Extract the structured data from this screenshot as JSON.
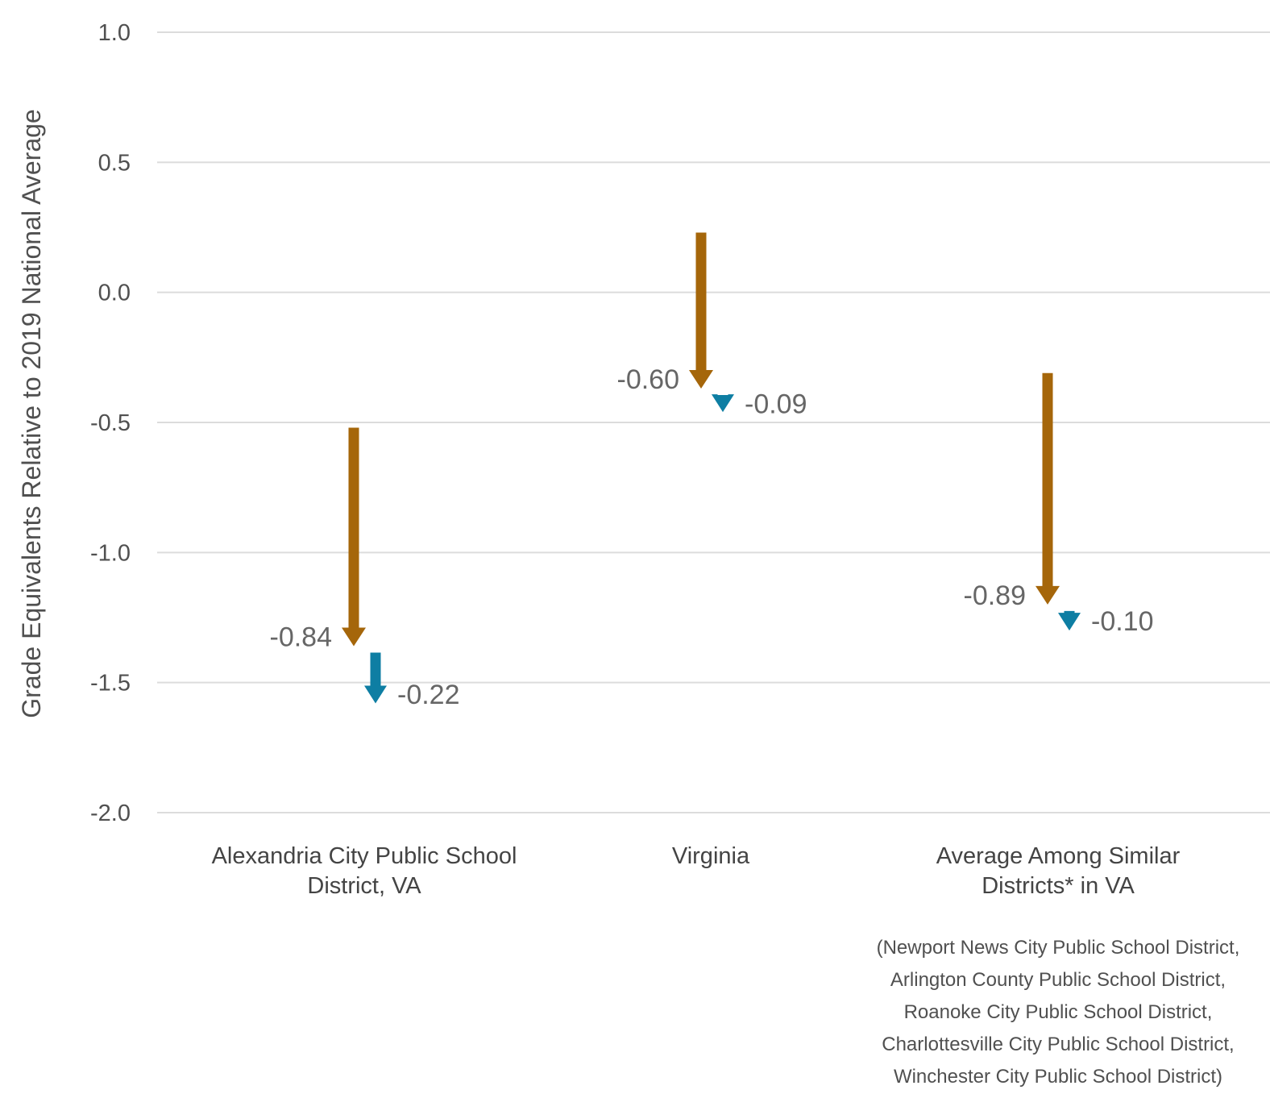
{
  "chart_data": {
    "type": "arrow",
    "ylabel": "Grade Equivalents Relative to 2019 National Average",
    "ylim": [
      -2.0,
      1.0
    ],
    "yticks": [
      {
        "value": 1.0,
        "label": "1.0"
      },
      {
        "value": 0.5,
        "label": "0.5"
      },
      {
        "value": 0.0,
        "label": "0.0"
      },
      {
        "value": -0.5,
        "label": "-0.5"
      },
      {
        "value": -1.0,
        "label": "-1.0"
      },
      {
        "value": -1.5,
        "label": "-1.5"
      },
      {
        "value": -2.0,
        "label": "-2.0"
      }
    ],
    "grid": true,
    "colors": {
      "first_change": "#a5660a",
      "second_change": "#0e7ea3"
    },
    "categories": [
      {
        "label_lines": [
          "Alexandria City Public School",
          "District, VA"
        ],
        "changes": [
          {
            "from": -0.52,
            "to": -1.36,
            "label": "-0.84"
          },
          {
            "from": -1.36,
            "to": -1.58,
            "label": "-0.22"
          }
        ]
      },
      {
        "label_lines": [
          "Virginia"
        ],
        "changes": [
          {
            "from": 0.23,
            "to": -0.37,
            "label": "-0.60"
          },
          {
            "from": -0.37,
            "to": -0.46,
            "label": "-0.09"
          }
        ]
      },
      {
        "label_lines": [
          "Average Among Similar",
          "Districts* in VA"
        ],
        "changes": [
          {
            "from": -0.31,
            "to": -1.2,
            "label": "-0.89"
          },
          {
            "from": -1.2,
            "to": -1.3,
            "label": "-0.10"
          }
        ]
      }
    ],
    "footnote_lines": [
      "(Newport News City Public School District,",
      "Arlington County Public School District,",
      "Roanoke City Public School District,",
      "Charlottesville City Public School District,",
      "Winchester City Public School District)"
    ]
  }
}
